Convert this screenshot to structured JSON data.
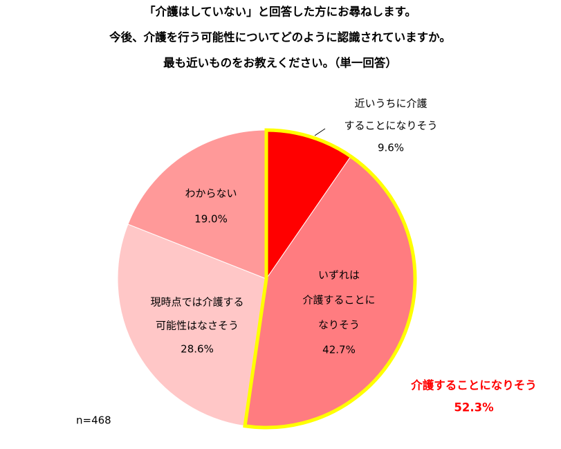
{
  "chart_data": {
    "type": "pie",
    "title": [
      "「介護はしていない」と回答した方にお尋ねします。",
      "今後、介護を行う可能性についてどのように認識されていますか。",
      "最も近いものをお教えください。（単一回答）"
    ],
    "categories": [
      [
        "近いうちに介護",
        "することになりそう"
      ],
      [
        "いずれは",
        "介護することに",
        "なりそう"
      ],
      [
        "現時点では介護する",
        "可能性はなさそう"
      ],
      [
        "わからない"
      ]
    ],
    "values": [
      9.6,
      42.7,
      28.6,
      19.0
    ],
    "value_labels": [
      "9.6%",
      "42.7%",
      "28.6%",
      "19.0%"
    ],
    "colors": [
      "#ff0000",
      "#ff7c80",
      "#ffc7c7",
      "#ff9999"
    ],
    "annotation": {
      "text": "介護することになりそう",
      "value": 52.3,
      "value_label": "52.3%",
      "color": "#ffff00"
    },
    "note": "n=468"
  }
}
